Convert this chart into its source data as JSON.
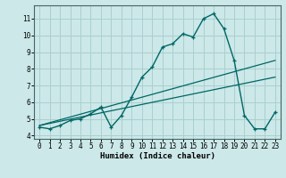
{
  "xlabel": "Humidex (Indice chaleur)",
  "xlim": [
    -0.5,
    23.5
  ],
  "ylim": [
    3.8,
    11.8
  ],
  "yticks": [
    4,
    5,
    6,
    7,
    8,
    9,
    10,
    11
  ],
  "xticks": [
    0,
    1,
    2,
    3,
    4,
    5,
    6,
    7,
    8,
    9,
    10,
    11,
    12,
    13,
    14,
    15,
    16,
    17,
    18,
    19,
    20,
    21,
    22,
    23
  ],
  "bg_color": "#cce8e8",
  "grid_color": "#aacfcf",
  "line_color": "#006666",
  "line1_x": [
    0,
    1,
    2,
    3,
    4,
    5,
    6,
    7,
    8,
    9,
    10,
    11,
    12,
    13,
    14,
    15,
    16,
    17,
    18,
    19,
    20,
    21,
    22,
    23
  ],
  "line1_y": [
    4.5,
    4.4,
    4.6,
    4.9,
    5.0,
    5.3,
    5.7,
    4.5,
    5.2,
    6.3,
    7.5,
    8.1,
    9.3,
    9.5,
    10.1,
    9.9,
    11.0,
    11.3,
    10.4,
    8.5,
    5.2,
    4.4,
    4.4,
    5.4
  ],
  "line2_x": [
    0,
    23
  ],
  "line2_y": [
    4.6,
    8.5
  ],
  "line3_x": [
    0,
    23
  ],
  "line3_y": [
    4.6,
    7.5
  ]
}
